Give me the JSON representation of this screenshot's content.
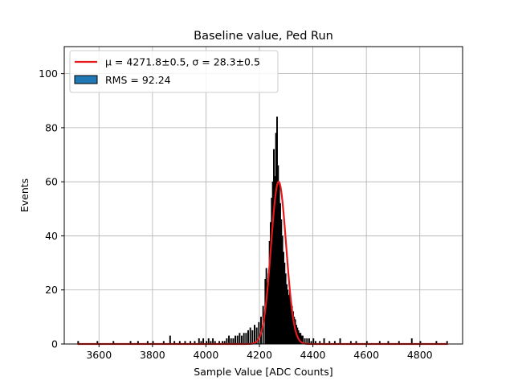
{
  "chart_data": {
    "type": "bar",
    "title": "Baseline value, Ped Run",
    "xlabel": "Sample Value [ADC Counts]",
    "ylabel": "Events",
    "xlim": [
      3470,
      4960
    ],
    "ylim": [
      0,
      110
    ],
    "xticks": [
      3600,
      3800,
      4000,
      4200,
      4400,
      4600,
      4800
    ],
    "yticks": [
      0,
      20,
      40,
      60,
      80,
      100
    ],
    "grid": true,
    "legend_position": "top-left",
    "legend": [
      {
        "label": "μ = 4271.8±0.5, σ = 28.3±0.5",
        "kind": "line",
        "color": "#e41a1c"
      },
      {
        "label": "RMS = 92.24",
        "kind": "patch",
        "color": "#1f77b4"
      }
    ],
    "histogram": {
      "name": "RMS = 92.24",
      "bin_width": 4,
      "bins": [
        [
          3520,
          1
        ],
        [
          3592,
          1
        ],
        [
          3652,
          1
        ],
        [
          3716,
          1
        ],
        [
          3744,
          1
        ],
        [
          3780,
          1
        ],
        [
          3800,
          1
        ],
        [
          3840,
          1
        ],
        [
          3864,
          3
        ],
        [
          3880,
          1
        ],
        [
          3900,
          1
        ],
        [
          3920,
          1
        ],
        [
          3940,
          1
        ],
        [
          3956,
          1
        ],
        [
          3972,
          2
        ],
        [
          3980,
          1
        ],
        [
          3988,
          2
        ],
        [
          4000,
          1
        ],
        [
          4008,
          2
        ],
        [
          4016,
          1
        ],
        [
          4024,
          2
        ],
        [
          4032,
          1
        ],
        [
          4048,
          1
        ],
        [
          4060,
          1
        ],
        [
          4068,
          1
        ],
        [
          4076,
          2
        ],
        [
          4084,
          3
        ],
        [
          4092,
          2
        ],
        [
          4100,
          2
        ],
        [
          4108,
          3
        ],
        [
          4116,
          3
        ],
        [
          4124,
          4
        ],
        [
          4132,
          3
        ],
        [
          4140,
          4
        ],
        [
          4148,
          4
        ],
        [
          4156,
          5
        ],
        [
          4164,
          6
        ],
        [
          4172,
          5
        ],
        [
          4180,
          7
        ],
        [
          4188,
          6
        ],
        [
          4196,
          8
        ],
        [
          4204,
          10
        ],
        [
          4212,
          14
        ],
        [
          4220,
          24
        ],
        [
          4224,
          28
        ],
        [
          4228,
          22
        ],
        [
          4232,
          26
        ],
        [
          4236,
          38
        ],
        [
          4240,
          45
        ],
        [
          4244,
          54
        ],
        [
          4248,
          60
        ],
        [
          4252,
          72
        ],
        [
          4256,
          62
        ],
        [
          4260,
          78
        ],
        [
          4264,
          84
        ],
        [
          4268,
          66
        ],
        [
          4272,
          60
        ],
        [
          4276,
          52
        ],
        [
          4280,
          46
        ],
        [
          4284,
          40
        ],
        [
          4288,
          34
        ],
        [
          4292,
          30
        ],
        [
          4296,
          26
        ],
        [
          4300,
          22
        ],
        [
          4304,
          20
        ],
        [
          4308,
          18
        ],
        [
          4312,
          19
        ],
        [
          4316,
          16
        ],
        [
          4320,
          14
        ],
        [
          4324,
          12
        ],
        [
          4328,
          10
        ],
        [
          4332,
          9
        ],
        [
          4336,
          7
        ],
        [
          4340,
          6
        ],
        [
          4344,
          5
        ],
        [
          4348,
          4
        ],
        [
          4352,
          4
        ],
        [
          4356,
          3
        ],
        [
          4360,
          3
        ],
        [
          4368,
          2
        ],
        [
          4376,
          2
        ],
        [
          4384,
          2
        ],
        [
          4392,
          1
        ],
        [
          4400,
          2
        ],
        [
          4408,
          1
        ],
        [
          4424,
          1
        ],
        [
          4440,
          2
        ],
        [
          4460,
          1
        ],
        [
          4480,
          1
        ],
        [
          4500,
          2
        ],
        [
          4540,
          1
        ],
        [
          4560,
          1
        ],
        [
          4600,
          1
        ],
        [
          4648,
          1
        ],
        [
          4680,
          1
        ],
        [
          4720,
          1
        ],
        [
          4768,
          2
        ],
        [
          4800,
          1
        ],
        [
          4860,
          1
        ],
        [
          4900,
          1
        ]
      ]
    },
    "fit": {
      "name": "Gaussian fit",
      "mu": 4271.8,
      "sigma": 28.3,
      "amplitude": 60,
      "x_range": [
        3520,
        4905
      ]
    }
  }
}
